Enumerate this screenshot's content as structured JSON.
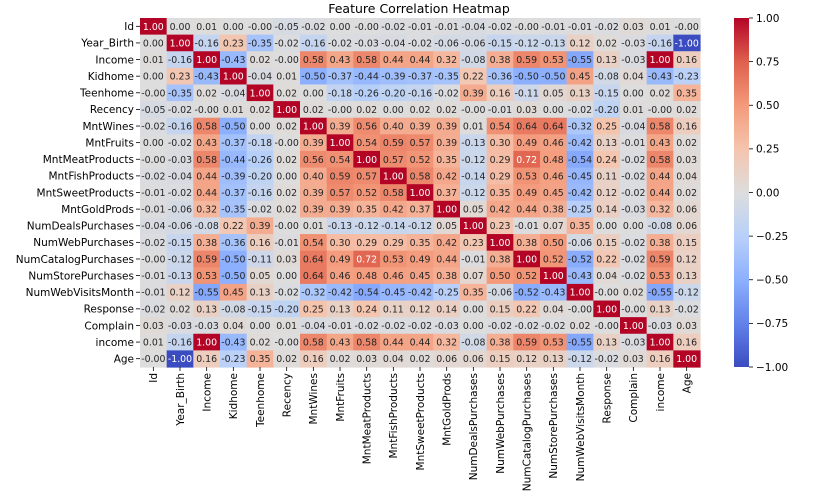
{
  "chart_data": {
    "type": "heatmap",
    "title": "Feature Correlation Heatmap",
    "labels": [
      "Id",
      "Year_Birth",
      "Income",
      "Kidhome",
      "Teenhome",
      "Recency",
      "MntWines",
      "MntFruits",
      "MntMeatProducts",
      "MntFishProducts",
      "MntSweetProducts",
      "MntGoldProds",
      "NumDealsPurchases",
      "NumWebPurchases",
      "NumCatalogPurchases",
      "NumStorePurchases",
      "NumWebVisitsMonth",
      "Response",
      "Complain",
      "income",
      "Age"
    ],
    "matrix": [
      [
        1.0,
        0.0,
        0.01,
        0.0,
        -0.0,
        -0.05,
        -0.02,
        0.0,
        -0.0,
        -0.02,
        -0.01,
        -0.01,
        -0.04,
        -0.02,
        -0.0,
        -0.01,
        -0.01,
        -0.02,
        0.03,
        0.01,
        -0.0
      ],
      [
        0.0,
        1.0,
        -0.16,
        0.23,
        -0.35,
        -0.02,
        -0.16,
        -0.02,
        -0.03,
        -0.04,
        -0.02,
        -0.06,
        -0.06,
        -0.15,
        -0.12,
        -0.13,
        0.12,
        0.02,
        -0.03,
        -0.16,
        -1.0
      ],
      [
        0.01,
        -0.16,
        1.0,
        -0.43,
        0.02,
        -0.0,
        0.58,
        0.43,
        0.58,
        0.44,
        0.44,
        0.32,
        -0.08,
        0.38,
        0.59,
        0.53,
        -0.55,
        0.13,
        -0.03,
        1.0,
        0.16
      ],
      [
        0.0,
        0.23,
        -0.43,
        1.0,
        -0.04,
        0.01,
        -0.5,
        -0.37,
        -0.44,
        -0.39,
        -0.37,
        -0.35,
        0.22,
        -0.36,
        -0.5,
        -0.5,
        0.45,
        -0.08,
        0.04,
        -0.43,
        -0.23
      ],
      [
        -0.0,
        -0.35,
        0.02,
        -0.04,
        1.0,
        0.02,
        0.0,
        -0.18,
        -0.26,
        -0.2,
        -0.16,
        -0.02,
        0.39,
        0.16,
        -0.11,
        0.05,
        0.13,
        -0.15,
        0.0,
        0.02,
        0.35
      ],
      [
        -0.05,
        -0.02,
        -0.0,
        0.01,
        0.02,
        1.0,
        0.02,
        -0.0,
        0.02,
        0.0,
        0.02,
        0.02,
        -0.0,
        -0.01,
        0.03,
        0.0,
        -0.02,
        -0.2,
        0.01,
        -0.0,
        0.02
      ],
      [
        -0.02,
        -0.16,
        0.58,
        -0.5,
        0.0,
        0.02,
        1.0,
        0.39,
        0.56,
        0.4,
        0.39,
        0.39,
        0.01,
        0.54,
        0.64,
        0.64,
        -0.32,
        0.25,
        -0.04,
        0.58,
        0.16
      ],
      [
        0.0,
        -0.02,
        0.43,
        -0.37,
        -0.18,
        -0.0,
        0.39,
        1.0,
        0.54,
        0.59,
        0.57,
        0.39,
        -0.13,
        0.3,
        0.49,
        0.46,
        -0.42,
        0.13,
        -0.01,
        0.43,
        0.02
      ],
      [
        -0.0,
        -0.03,
        0.58,
        -0.44,
        -0.26,
        0.02,
        0.56,
        0.54,
        1.0,
        0.57,
        0.52,
        0.35,
        -0.12,
        0.29,
        0.72,
        0.48,
        -0.54,
        0.24,
        -0.02,
        0.58,
        0.03
      ],
      [
        -0.02,
        -0.04,
        0.44,
        -0.39,
        -0.2,
        0.0,
        0.4,
        0.59,
        0.57,
        1.0,
        0.58,
        0.42,
        -0.14,
        0.29,
        0.53,
        0.46,
        -0.45,
        0.11,
        -0.02,
        0.44,
        0.04
      ],
      [
        -0.01,
        -0.02,
        0.44,
        -0.37,
        -0.16,
        0.02,
        0.39,
        0.57,
        0.52,
        0.58,
        1.0,
        0.37,
        -0.12,
        0.35,
        0.49,
        0.45,
        -0.42,
        0.12,
        -0.02,
        0.44,
        0.02
      ],
      [
        -0.01,
        -0.06,
        0.32,
        -0.35,
        -0.02,
        0.02,
        0.39,
        0.39,
        0.35,
        0.42,
        0.37,
        1.0,
        0.05,
        0.42,
        0.44,
        0.38,
        -0.25,
        0.14,
        -0.03,
        0.32,
        0.06
      ],
      [
        -0.04,
        -0.06,
        -0.08,
        0.22,
        0.39,
        -0.0,
        0.01,
        -0.13,
        -0.12,
        -0.14,
        -0.12,
        0.05,
        1.0,
        0.23,
        -0.01,
        0.07,
        0.35,
        0.0,
        0.0,
        -0.08,
        0.06
      ],
      [
        -0.02,
        -0.15,
        0.38,
        -0.36,
        0.16,
        -0.01,
        0.54,
        0.3,
        0.29,
        0.29,
        0.35,
        0.42,
        0.23,
        1.0,
        0.38,
        0.5,
        -0.06,
        0.15,
        -0.02,
        0.38,
        0.15
      ],
      [
        -0.0,
        -0.12,
        0.59,
        -0.5,
        -0.11,
        0.03,
        0.64,
        0.49,
        0.72,
        0.53,
        0.49,
        0.44,
        -0.01,
        0.38,
        1.0,
        0.52,
        -0.52,
        0.22,
        -0.02,
        0.59,
        0.12
      ],
      [
        -0.01,
        -0.13,
        0.53,
        -0.5,
        0.05,
        0.0,
        0.64,
        0.46,
        0.48,
        0.46,
        0.45,
        0.38,
        0.07,
        0.5,
        0.52,
        1.0,
        -0.43,
        0.04,
        -0.02,
        0.53,
        0.13
      ],
      [
        -0.01,
        0.12,
        -0.55,
        0.45,
        0.13,
        -0.02,
        -0.32,
        -0.42,
        -0.54,
        -0.45,
        -0.42,
        -0.25,
        0.35,
        -0.06,
        -0.52,
        -0.43,
        1.0,
        -0.0,
        0.02,
        -0.55,
        -0.12
      ],
      [
        -0.02,
        0.02,
        0.13,
        -0.08,
        -0.15,
        -0.2,
        0.25,
        0.13,
        0.24,
        0.11,
        0.12,
        0.14,
        0.0,
        0.15,
        0.22,
        0.04,
        -0.0,
        1.0,
        -0.0,
        0.13,
        -0.02
      ],
      [
        0.03,
        -0.03,
        -0.03,
        0.04,
        0.0,
        0.01,
        -0.04,
        -0.01,
        -0.02,
        -0.02,
        -0.02,
        -0.03,
        0.0,
        -0.02,
        -0.02,
        -0.02,
        0.02,
        -0.0,
        1.0,
        -0.03,
        0.03
      ],
      [
        0.01,
        -0.16,
        1.0,
        -0.43,
        0.02,
        -0.0,
        0.58,
        0.43,
        0.58,
        0.44,
        0.44,
        0.32,
        -0.08,
        0.38,
        0.59,
        0.53,
        -0.55,
        0.13,
        -0.03,
        1.0,
        0.16
      ],
      [
        -0.0,
        -1.0,
        0.16,
        -0.23,
        0.35,
        0.02,
        0.16,
        0.02,
        0.03,
        0.04,
        0.02,
        0.06,
        0.06,
        0.15,
        0.12,
        0.13,
        -0.12,
        -0.02,
        0.03,
        0.16,
        1.0
      ]
    ],
    "colormap": "coolwarm",
    "vmin": -1.0,
    "vmax": 1.0,
    "annotation_format": "0.00",
    "colorbar_ticks": [
      1.0,
      0.75,
      0.5,
      0.25,
      0.0,
      -0.25,
      -0.5,
      -0.75,
      -1.0
    ],
    "colorbar_tick_labels": [
      "1.00",
      "0.75",
      "0.50",
      "0.25",
      "0.00",
      "−0.25",
      "−0.50",
      "−0.75",
      "−1.00"
    ],
    "colors": {
      "negative": "#3b4cc0",
      "neutral": "#dddddd",
      "positive": "#b40426"
    }
  }
}
